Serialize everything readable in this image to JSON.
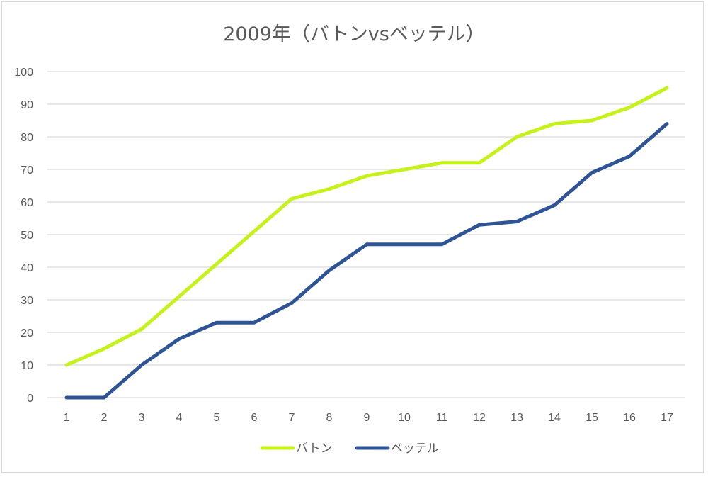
{
  "chart_data": {
    "type": "line",
    "title": "2009年（バトンvsベッテル）",
    "xlabel": "",
    "ylabel": "",
    "x": [
      1,
      2,
      3,
      4,
      5,
      6,
      7,
      8,
      9,
      10,
      11,
      12,
      13,
      14,
      15,
      16,
      17
    ],
    "categories": [
      "1",
      "2",
      "3",
      "4",
      "5",
      "6",
      "7",
      "8",
      "9",
      "10",
      "11",
      "12",
      "13",
      "14",
      "15",
      "16",
      "17"
    ],
    "series": [
      {
        "name": "バトン",
        "color": "#c6f21c",
        "values": [
          10,
          15,
          21,
          31,
          41,
          51,
          61,
          64,
          68,
          70,
          72,
          72,
          80,
          84,
          85,
          89,
          95
        ]
      },
      {
        "name": "ベッテル",
        "color": "#2f5496",
        "values": [
          0,
          0,
          10,
          18,
          23,
          23,
          29,
          39,
          47,
          47,
          47,
          53,
          54,
          59,
          69,
          74,
          84
        ]
      }
    ],
    "ylim": [
      0,
      100
    ],
    "yticks": [
      0,
      10,
      20,
      30,
      40,
      50,
      60,
      70,
      80,
      90,
      100
    ],
    "grid": true,
    "legend_position": "bottom"
  },
  "legend": {
    "items": [
      {
        "label": "バトン",
        "color": "#c6f21c"
      },
      {
        "label": "ベッテル",
        "color": "#2f5496"
      }
    ]
  }
}
